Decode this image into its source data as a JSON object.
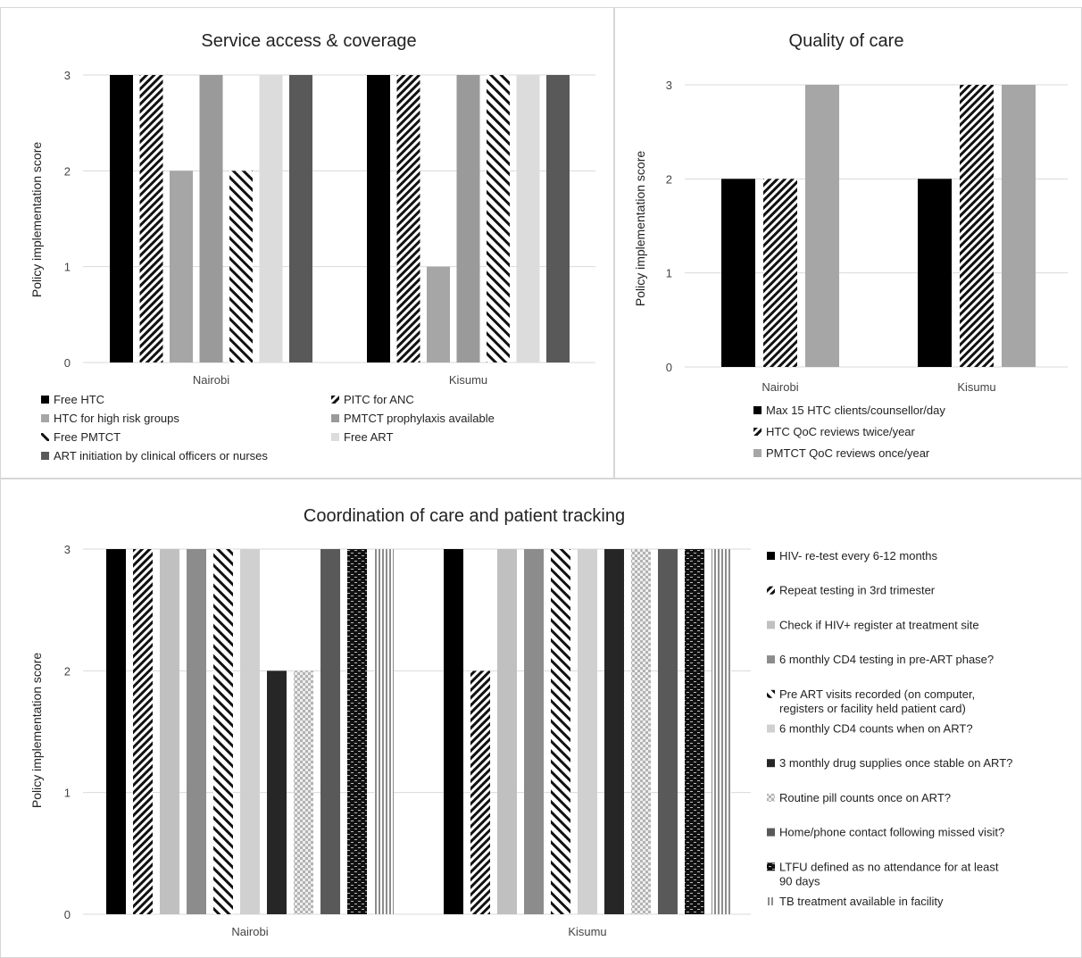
{
  "chart_data": [
    {
      "type": "bar",
      "title": "Service access & coverage",
      "ylabel": "Policy implementation score",
      "xlabel": "",
      "ylim": [
        0,
        3
      ],
      "yticks": [
        "0",
        "1",
        "2",
        "3"
      ],
      "grid": true,
      "legend_position": "bottom",
      "categories": [
        "Nairobi",
        "Kisumu"
      ],
      "series": [
        {
          "name": "Free HTC",
          "values": [
            3,
            3
          ],
          "fill": "solid",
          "color": "#000000"
        },
        {
          "name": "PITC for ANC",
          "values": [
            3,
            3
          ],
          "fill": "diag-dense",
          "color": "#111111"
        },
        {
          "name": "HTC for high risk groups",
          "values": [
            2,
            1
          ],
          "fill": "solid",
          "color": "#a6a6a6"
        },
        {
          "name": "PMTCT prophylaxis available",
          "values": [
            3,
            3
          ],
          "fill": "solid",
          "color": "#9a9a9a"
        },
        {
          "name": "Free PMTCT",
          "values": [
            2,
            3
          ],
          "fill": "diag-wide",
          "color": "#111111"
        },
        {
          "name": "Free ART",
          "values": [
            3,
            3
          ],
          "fill": "solid",
          "color": "#dcdcdc"
        },
        {
          "name": "ART initiation by clinical officers or nurses",
          "values": [
            3,
            3
          ],
          "fill": "solid",
          "color": "#595959"
        }
      ]
    },
    {
      "type": "bar",
      "title": "Quality of care",
      "ylabel": "Policy implementation score",
      "xlabel": "",
      "ylim": [
        0,
        3
      ],
      "yticks": [
        "0",
        "1",
        "2",
        "3"
      ],
      "grid": true,
      "legend_position": "bottom",
      "categories": [
        "Nairobi",
        "Kisumu"
      ],
      "series": [
        {
          "name": "Max 15 HTC clients/counsellor/day",
          "values": [
            2,
            2
          ],
          "fill": "solid",
          "color": "#000000"
        },
        {
          "name": "HTC QoC reviews twice/year",
          "values": [
            2,
            3
          ],
          "fill": "diag-dense",
          "color": "#111111"
        },
        {
          "name": "PMTCT QoC reviews once/year",
          "values": [
            3,
            3
          ],
          "fill": "solid",
          "color": "#a6a6a6"
        }
      ]
    },
    {
      "type": "bar",
      "title": "Coordination of care and patient tracking",
      "ylabel": "Policy implementation score",
      "xlabel": "",
      "ylim": [
        0,
        3
      ],
      "yticks": [
        "0",
        "1",
        "2",
        "3"
      ],
      "grid": true,
      "legend_position": "right",
      "categories": [
        "Nairobi",
        "Kisumu"
      ],
      "series": [
        {
          "name": "HIV- re-test every 6-12 months",
          "values": [
            3,
            3
          ],
          "fill": "solid",
          "color": "#000000"
        },
        {
          "name": "Repeat testing in 3rd trimester",
          "values": [
            3,
            2
          ],
          "fill": "diag-dense",
          "color": "#111111"
        },
        {
          "name": "Check if HIV+ register at treatment site",
          "values": [
            3,
            3
          ],
          "fill": "solid",
          "color": "#c0c0c0"
        },
        {
          "name": "6 monthly CD4 testing in pre-ART phase?",
          "values": [
            3,
            3
          ],
          "fill": "solid",
          "color": "#8c8c8c"
        },
        {
          "name": "Pre ART visits recorded (on computer, registers or facility held patient card)",
          "values": [
            3,
            3
          ],
          "fill": "diag-wide",
          "color": "#111111"
        },
        {
          "name": "6 monthly CD4 counts when on ART?",
          "values": [
            3,
            3
          ],
          "fill": "solid",
          "color": "#d0d0d0"
        },
        {
          "name": "3 monthly drug supplies once stable on ART?",
          "values": [
            2,
            3
          ],
          "fill": "solid",
          "color": "#262626"
        },
        {
          "name": "Routine pill counts once on ART?",
          "values": [
            2,
            3
          ],
          "fill": "checker",
          "color": "#bdbdbd"
        },
        {
          "name": "Home/phone contact following missed visit?",
          "values": [
            3,
            3
          ],
          "fill": "solid",
          "color": "#595959"
        },
        {
          "name": "LTFU defined as no attendance for at least 90 days",
          "values": [
            3,
            3
          ],
          "fill": "brick",
          "color": "#111111"
        },
        {
          "name": "TB treatment available in facility",
          "values": [
            3,
            3
          ],
          "fill": "vlines",
          "color": "#8c8c8c"
        }
      ]
    }
  ]
}
